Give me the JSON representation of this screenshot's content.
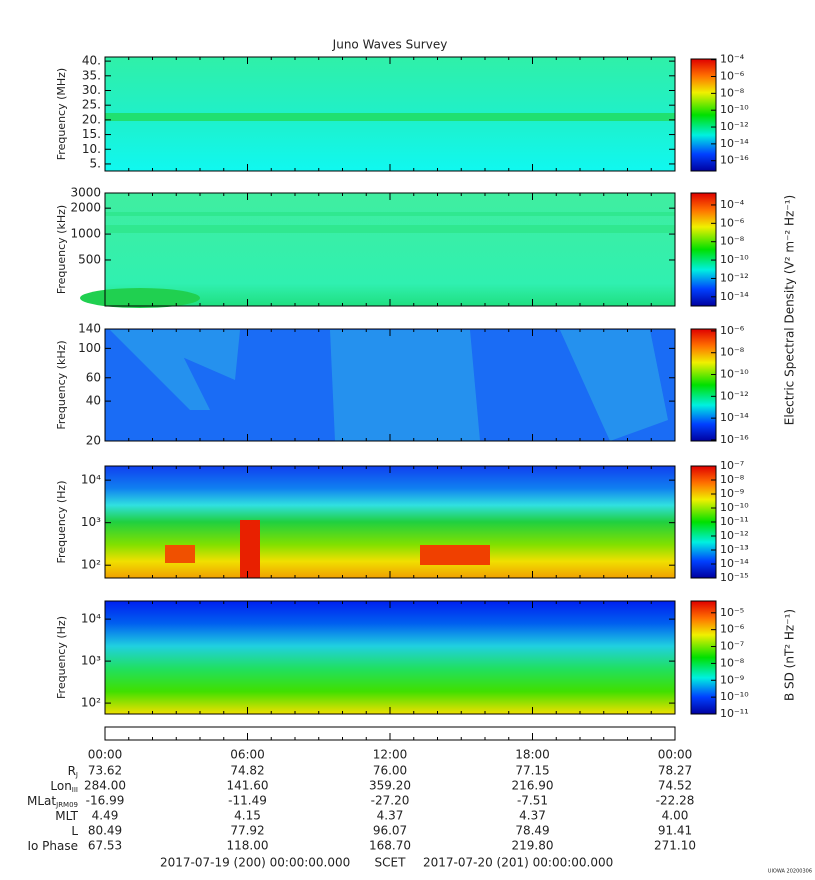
{
  "chart_data": [
    {
      "type": "spectrogram",
      "title": "Juno Waves Survey",
      "ylabel": "Frequency (MHz)",
      "log": false,
      "ylim": [
        2.6,
        41.4
      ],
      "yticks": [
        {
          "value": 5,
          "label": "5."
        },
        {
          "value": 10,
          "label": "10."
        },
        {
          "value": 15,
          "label": "15."
        },
        {
          "value": 20,
          "label": "20."
        },
        {
          "value": 25,
          "label": "25."
        },
        {
          "value": 30,
          "label": "30."
        },
        {
          "value": 35,
          "label": "35."
        },
        {
          "value": 40,
          "label": "40."
        }
      ],
      "zlim": [
        6e-18,
        0.00012
      ],
      "zticks": [
        {
          "value": 0.0001,
          "label": "10⁻⁴"
        },
        {
          "value": 1e-06,
          "label": "10⁻⁶"
        },
        {
          "value": 1e-08,
          "label": "10⁻⁸"
        },
        {
          "value": 1e-10,
          "label": "10⁻¹⁰"
        },
        {
          "value": 1e-12,
          "label": "10⁻¹²"
        },
        {
          "value": 1e-14,
          "label": "10⁻¹⁴"
        },
        {
          "value": 1e-16,
          "label": "10⁻¹⁶"
        }
      ]
    },
    {
      "type": "spectrogram",
      "ylabel": "Frequency (kHz)",
      "log": true,
      "ylim": [
        146,
        3000
      ],
      "yticks": [
        500,
        1000,
        2000,
        3000
      ],
      "zlim": [
        1e-15,
        0.002
      ],
      "zticks": [
        {
          "value": 0.0001,
          "label": "10⁻⁴"
        },
        {
          "value": 1e-06,
          "label": "10⁻⁶"
        },
        {
          "value": 1e-08,
          "label": "10⁻⁸"
        },
        {
          "value": 1e-10,
          "label": "10⁻¹⁰"
        },
        {
          "value": 1e-12,
          "label": "10⁻¹²"
        },
        {
          "value": 1e-14,
          "label": "10⁻¹⁴"
        }
      ]
    },
    {
      "type": "spectrogram",
      "ylabel": "Frequency (kHz)",
      "log": true,
      "ylim": [
        20,
        140
      ],
      "yticks": [
        20,
        40,
        60,
        100,
        140
      ],
      "zlim": [
        8e-17,
        1.5e-06
      ],
      "zticks": [
        {
          "value": 1e-06,
          "label": "10⁻⁶"
        },
        {
          "value": 1e-08,
          "label": "10⁻⁸"
        },
        {
          "value": 1e-10,
          "label": "10⁻¹⁰"
        },
        {
          "value": 1e-12,
          "label": "10⁻¹²"
        },
        {
          "value": 1e-14,
          "label": "10⁻¹⁴"
        },
        {
          "value": 1e-16,
          "label": "10⁻¹⁶"
        }
      ]
    },
    {
      "type": "spectrogram",
      "ylabel": "Frequency (Hz)",
      "log": true,
      "ylim": [
        50,
        21500
      ],
      "yticks": [
        {
          "value": 100,
          "label": "10²"
        },
        {
          "value": 1000,
          "label": "10³"
        },
        {
          "value": 10000,
          "label": "10⁴"
        }
      ],
      "zlim": [
        1e-15,
        1e-07
      ],
      "zticks": [
        {
          "value": 1e-07,
          "label": "10⁻⁷"
        },
        {
          "value": 1e-08,
          "label": "10⁻⁸"
        },
        {
          "value": 1e-09,
          "label": "10⁻⁹"
        },
        {
          "value": 1e-10,
          "label": "10⁻¹⁰"
        },
        {
          "value": 1e-11,
          "label": "10⁻¹¹"
        },
        {
          "value": 1e-12,
          "label": "10⁻¹²"
        },
        {
          "value": 1e-13,
          "label": "10⁻¹³"
        },
        {
          "value": 1e-14,
          "label": "10⁻¹⁴"
        },
        {
          "value": 1e-15,
          "label": "10⁻¹⁵"
        }
      ]
    },
    {
      "type": "spectrogram",
      "ylabel": "Frequency (Hz)",
      "log": true,
      "ylim": [
        55,
        27000
      ],
      "yticks": [
        {
          "value": 100,
          "label": "10²"
        },
        {
          "value": 1000,
          "label": "10³"
        },
        {
          "value": 10000,
          "label": "10⁴"
        }
      ],
      "zlabel": "B SD (nT² Hz⁻¹)",
      "zlim": [
        1e-11,
        5e-05
      ],
      "zticks": [
        {
          "value": 1e-05,
          "label": "10⁻⁵"
        },
        {
          "value": 1e-06,
          "label": "10⁻⁶"
        },
        {
          "value": 1e-07,
          "label": "10⁻⁷"
        },
        {
          "value": 1e-08,
          "label": "10⁻⁸"
        },
        {
          "value": 1e-09,
          "label": "10⁻⁹"
        },
        {
          "value": 1e-10,
          "label": "10⁻¹⁰"
        },
        {
          "value": 1e-11,
          "label": "10⁻¹¹"
        }
      ]
    }
  ],
  "electric_zlabel": "Electric Spectral Density (V² m⁻² Hz⁻¹)",
  "time_axis": {
    "xlim": [
      0,
      24
    ],
    "xticks": [
      {
        "value": 0,
        "label": "00:00"
      },
      {
        "value": 6,
        "label": "06:00"
      },
      {
        "value": 12,
        "label": "12:00"
      },
      {
        "value": 18,
        "label": "18:00"
      },
      {
        "value": 24,
        "label": "00:00"
      }
    ]
  },
  "ephemeris": [
    {
      "label": "R",
      "sub": "J",
      "values": [
        73.62,
        74.82,
        76.0,
        77.15,
        78.27
      ],
      "value_labels": [
        "73.62",
        "74.82",
        "76.00",
        "77.15",
        "78.27"
      ]
    },
    {
      "label": "Lon",
      "sub": "III",
      "values": [
        284.0,
        141.6,
        359.2,
        216.9,
        74.52
      ],
      "value_labels": [
        "284.00",
        "141.60",
        "359.20",
        "216.90",
        "74.52"
      ]
    },
    {
      "label": "MLat",
      "sub": "JRM09",
      "values": [
        -16.99,
        -11.49,
        -27.2,
        -7.51,
        -22.28
      ],
      "value_labels": [
        "-16.99",
        "-11.49",
        "-27.20",
        "-7.51",
        "-22.28"
      ]
    },
    {
      "label": "MLT",
      "values": [
        4.49,
        4.15,
        4.37,
        4.37,
        4.0
      ],
      "value_labels": [
        "4.49",
        "4.15",
        "4.37",
        "4.37",
        "4.00"
      ]
    },
    {
      "label": "L",
      "values": [
        80.49,
        77.92,
        96.07,
        78.49,
        91.41
      ],
      "value_labels": [
        "80.49",
        "77.92",
        "96.07",
        "78.49",
        "91.41"
      ]
    },
    {
      "label": "Io Phase",
      "values": [
        67.53,
        118.0,
        168.7,
        219.8,
        271.1
      ],
      "value_labels": [
        "67.53",
        "118.00",
        "168.70",
        "219.80",
        "271.10"
      ]
    }
  ],
  "footer": {
    "start": "2017-07-19 (200) 00:00:00.000",
    "mid": "SCET",
    "end": "2017-07-20 (201) 00:00:00.000",
    "stamp": "UIOWA 20200306"
  }
}
